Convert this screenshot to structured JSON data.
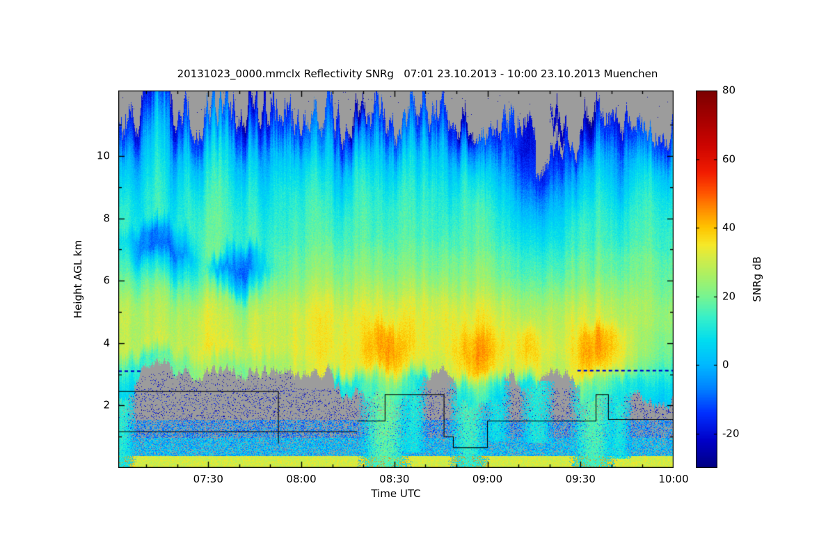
{
  "chart_data": {
    "type": "heatmap",
    "title": "20131023_0000.mmclx Reflectivity SNRg   07:01 23.10.2013 - 10:00 23.10.2013 Muenchen",
    "file": "20131023_0000.mmclx",
    "quantity": "Reflectivity SNRg",
    "time_start": "07:01 23.10.2013",
    "time_end": "10:00 23.10.2013",
    "station": "Muenchen",
    "xlabel": "Time UTC",
    "ylabel": "Height AGL km",
    "colorbar_label": "SNRg dB",
    "no_data_color": "#9c9c9c",
    "x_axis": {
      "t0": 0,
      "t1": 179,
      "start_time": "07:01",
      "end_time": "10:00",
      "major_ticks": [
        {
          "t": 29,
          "label": "07:30"
        },
        {
          "t": 59,
          "label": "08:00"
        },
        {
          "t": 89,
          "label": "08:30"
        },
        {
          "t": 119,
          "label": "09:00"
        },
        {
          "t": 149,
          "label": "09:30"
        },
        {
          "t": 179,
          "label": "10:00"
        }
      ],
      "minor_ticks": [
        9,
        19,
        39,
        49,
        69,
        79,
        99,
        109,
        129,
        139,
        159,
        169
      ]
    },
    "y_axis": {
      "min_km": 0,
      "max_km": 12.1,
      "major_ticks": [
        2,
        4,
        6,
        8,
        10
      ],
      "minor_ticks": [
        1,
        3,
        5,
        7,
        9,
        11
      ]
    },
    "colorbar": {
      "min": -30,
      "max": 80,
      "ticks": [
        80,
        60,
        40,
        20,
        0,
        -20
      ],
      "stops": [
        [
          -30,
          "#000082"
        ],
        [
          -22,
          "#0000c8"
        ],
        [
          -14,
          "#0030ff"
        ],
        [
          -7,
          "#0080ff"
        ],
        [
          0,
          "#00b8ff"
        ],
        [
          7,
          "#00dcf0"
        ],
        [
          14,
          "#38f0c8"
        ],
        [
          20,
          "#78f490"
        ],
        [
          26,
          "#aaf064"
        ],
        [
          31,
          "#d2ec48"
        ],
        [
          35,
          "#f6e828"
        ],
        [
          40,
          "#ffc400"
        ],
        [
          45,
          "#ff9000"
        ],
        [
          50,
          "#ff5600"
        ],
        [
          56,
          "#f21c00"
        ],
        [
          64,
          "#cc0400"
        ],
        [
          72,
          "#a40000"
        ],
        [
          80,
          "#7a0000"
        ]
      ]
    },
    "grid": {
      "t0": 0,
      "t1": 179,
      "h_top": 12.0,
      "h_bottom": 2.0,
      "cols": 36,
      "rows": 20,
      "values": [
        [
          null,
          null,
          null,
          null,
          null,
          null,
          null,
          null,
          null,
          null,
          null,
          null,
          null,
          null,
          null,
          null,
          null,
          null,
          null,
          null,
          null,
          null,
          null,
          null,
          null,
          null,
          null,
          null,
          null,
          null,
          null,
          null,
          null,
          null,
          null,
          null
        ],
        [
          null,
          null,
          -26,
          null,
          null,
          null,
          null,
          null,
          -24,
          null,
          null,
          null,
          null,
          null,
          null,
          -25,
          null,
          null,
          null,
          null,
          null,
          null,
          -24,
          null,
          null,
          null,
          null,
          null,
          null,
          null,
          -26,
          null,
          null,
          null,
          null,
          null
        ],
        [
          -14,
          -18,
          -12,
          -20,
          -10,
          -16,
          -8,
          -18,
          -12,
          -20,
          -10,
          -15,
          -8,
          -14,
          -18,
          -6,
          -12,
          -16,
          -8,
          -14,
          -10,
          -18,
          -6,
          -12,
          -16,
          -10,
          -20,
          null,
          -22,
          null,
          -18,
          -12,
          -20,
          -14,
          -10,
          -16
        ],
        [
          -6,
          -10,
          -4,
          -12,
          -2,
          -8,
          0,
          -10,
          -4,
          -12,
          -2,
          -6,
          0,
          -8,
          -12,
          2,
          -4,
          -8,
          0,
          -6,
          -2,
          -10,
          2,
          -4,
          -8,
          -14,
          -20,
          null,
          null,
          -16,
          -8,
          -4,
          -14,
          -6,
          -2,
          -8
        ],
        [
          2,
          -2,
          4,
          -4,
          6,
          0,
          8,
          -2,
          4,
          -4,
          6,
          2,
          8,
          0,
          -4,
          10,
          4,
          0,
          8,
          2,
          6,
          -2,
          10,
          4,
          0,
          -8,
          -16,
          null,
          -18,
          -6,
          0,
          4,
          -8,
          2,
          6,
          0
        ],
        [
          6,
          2,
          8,
          0,
          10,
          4,
          12,
          2,
          8,
          0,
          10,
          6,
          12,
          4,
          0,
          14,
          8,
          4,
          12,
          6,
          10,
          2,
          14,
          8,
          4,
          -4,
          -12,
          -18,
          -10,
          -2,
          4,
          8,
          -4,
          6,
          10,
          4
        ],
        [
          10,
          6,
          12,
          4,
          14,
          8,
          15,
          6,
          12,
          4,
          14,
          10,
          15,
          8,
          4,
          16,
          12,
          8,
          15,
          10,
          14,
          6,
          16,
          12,
          8,
          2,
          -6,
          -10,
          -4,
          4,
          8,
          12,
          0,
          10,
          12,
          8
        ],
        [
          13,
          9,
          14,
          7,
          15,
          11,
          16,
          9,
          14,
          7,
          15,
          12,
          16,
          11,
          8,
          17,
          14,
          11,
          16,
          13,
          15,
          9,
          17,
          14,
          11,
          6,
          0,
          -4,
          2,
          8,
          12,
          14,
          6,
          12,
          14,
          10
        ],
        [
          14,
          10,
          15,
          9,
          16,
          13,
          17,
          11,
          15,
          10,
          16,
          14,
          17,
          13,
          11,
          18,
          15,
          13,
          17,
          15,
          16,
          12,
          18,
          15,
          13,
          9,
          5,
          2,
          6,
          11,
          14,
          16,
          9,
          14,
          15,
          12
        ],
        [
          8,
          -4,
          -8,
          -2,
          10,
          14,
          17,
          12,
          16,
          12,
          17,
          15,
          18,
          15,
          13,
          19,
          16,
          15,
          18,
          16,
          17,
          14,
          19,
          16,
          15,
          12,
          9,
          6,
          9,
          13,
          15,
          17,
          11,
          15,
          16,
          13
        ],
        [
          14,
          -4,
          -10,
          -8,
          0,
          14,
          18,
          -2,
          -6,
          12,
          20,
          18,
          21,
          18,
          17,
          22,
          20,
          18,
          21,
          19,
          20,
          18,
          22,
          20,
          18,
          16,
          13,
          11,
          13,
          17,
          18,
          20,
          15,
          18,
          19,
          16
        ],
        [
          18,
          12,
          8,
          4,
          10,
          16,
          -6,
          -10,
          -8,
          8,
          21,
          20,
          23,
          20,
          19,
          24,
          22,
          20,
          23,
          21,
          22,
          20,
          24,
          22,
          20,
          18,
          16,
          14,
          16,
          19,
          20,
          21,
          17,
          19,
          20,
          17
        ],
        [
          23,
          19,
          17,
          15,
          19,
          21,
          13,
          -1,
          7,
          19,
          25,
          23,
          27,
          24,
          23,
          28,
          26,
          24,
          27,
          25,
          26,
          24,
          28,
          26,
          24,
          22,
          20,
          18,
          20,
          23,
          24,
          25,
          21,
          22,
          22,
          19
        ],
        [
          28,
          25,
          24,
          23,
          25,
          27,
          24,
          19,
          22,
          26,
          30,
          28,
          31,
          29,
          28,
          32,
          31,
          29,
          32,
          30,
          31,
          29,
          32,
          31,
          29,
          27,
          25,
          23,
          25,
          28,
          29,
          29,
          25,
          25,
          24,
          22
        ],
        [
          30,
          28,
          27,
          27,
          29,
          30,
          28,
          25,
          28,
          30,
          32,
          31,
          34,
          32,
          31,
          35,
          34,
          32,
          35,
          33,
          34,
          32,
          35,
          34,
          32,
          30,
          28,
          26,
          28,
          31,
          32,
          32,
          27,
          26,
          24,
          22
        ],
        [
          29,
          28,
          28,
          28,
          29,
          30,
          29,
          27,
          29,
          30,
          32,
          31,
          33,
          32,
          31,
          34,
          40,
          42,
          38,
          34,
          33,
          32,
          40,
          41,
          36,
          32,
          38,
          30,
          29,
          33,
          42,
          43,
          34,
          26,
          22,
          20
        ],
        [
          30,
          30,
          30,
          30,
          31,
          32,
          31,
          30,
          31,
          32,
          33,
          32,
          34,
          33,
          33,
          35,
          42,
          44,
          40,
          35,
          34,
          33,
          42,
          42,
          38,
          33,
          40,
          32,
          31,
          34,
          44,
          44,
          35,
          26,
          21,
          18
        ],
        [
          18,
          14,
          16,
          20,
          22,
          24,
          22,
          20,
          24,
          26,
          28,
          29,
          31,
          31,
          31,
          33,
          38,
          40,
          36,
          32,
          31,
          30,
          38,
          38,
          34,
          30,
          35,
          29,
          28,
          31,
          40,
          40,
          31,
          22,
          16,
          12
        ],
        [
          10,
          null,
          null,
          null,
          null,
          null,
          null,
          null,
          null,
          null,
          null,
          null,
          null,
          null,
          8,
          12,
          20,
          24,
          18,
          10,
          null,
          null,
          16,
          18,
          12,
          null,
          10,
          null,
          null,
          null,
          20,
          22,
          12,
          8,
          8,
          6
        ],
        [
          6,
          null,
          null,
          null,
          null,
          null,
          null,
          null,
          null,
          null,
          null,
          null,
          null,
          null,
          null,
          null,
          14,
          18,
          12,
          null,
          null,
          null,
          10,
          12,
          6,
          null,
          null,
          null,
          null,
          null,
          15,
          16,
          8,
          null,
          4,
          2
        ]
      ]
    },
    "streaks": [
      {
        "t": 1,
        "w": 5,
        "bottom": 0,
        "v": 14
      },
      {
        "t": 86,
        "w": 9,
        "bottom": 0,
        "v": 20
      },
      {
        "t": 95,
        "w": 5,
        "bottom": 0.55,
        "v": 12
      },
      {
        "t": 113,
        "w": 7,
        "bottom": 0,
        "v": 16
      },
      {
        "t": 122,
        "w": 5,
        "bottom": 0.9,
        "v": 10
      },
      {
        "t": 135,
        "w": 6,
        "bottom": 0.85,
        "v": 12
      },
      {
        "t": 153,
        "w": 8,
        "bottom": 0,
        "v": 18
      },
      {
        "t": 161,
        "w": 5,
        "bottom": 0.35,
        "v": 12
      }
    ],
    "lowlevel": {
      "surface_band": {
        "h_top": 0.38,
        "v_base": 31,
        "v_noise": 10
      },
      "layers": [
        {
          "h0": 0.38,
          "h1": 0.95,
          "coverage": 0.75,
          "v_min": -10,
          "v_max": 12
        },
        {
          "h0": 0.95,
          "h1": 1.55,
          "coverage": 0.5,
          "v_min": -16,
          "v_max": 4
        },
        {
          "h0": 1.55,
          "h1": 2.55,
          "coverage": 0.1,
          "v_min": -27,
          "v_max": -14
        },
        {
          "h0": 2.55,
          "h1": 3.1,
          "coverage": 0.05,
          "v_min": -27,
          "v_max": -18,
          "t_max": 57
        }
      ]
    },
    "dashes": [
      {
        "t0": 0,
        "t1": 8,
        "h": 3.1,
        "color": "#0014c8"
      },
      {
        "t0": 148,
        "t1": 179,
        "h": 3.12,
        "color": "#0014c8"
      }
    ],
    "contours": [
      [
        [
          0,
          2.45
        ],
        [
          51.6,
          2.45
        ],
        [
          51.6,
          0.78
        ]
      ],
      [
        [
          0,
          1.16
        ],
        [
          77,
          1.16
        ]
      ],
      [
        [
          77,
          1.5
        ],
        [
          86,
          1.5
        ],
        [
          86,
          2.35
        ],
        [
          105,
          2.35
        ],
        [
          105,
          1.0
        ],
        [
          108,
          1.0
        ],
        [
          108,
          0.65
        ],
        [
          119,
          0.65
        ],
        [
          119,
          1.5
        ],
        [
          154,
          1.5
        ],
        [
          154,
          2.35
        ],
        [
          158,
          2.35
        ],
        [
          158,
          1.55
        ],
        [
          179,
          1.55
        ]
      ]
    ]
  }
}
